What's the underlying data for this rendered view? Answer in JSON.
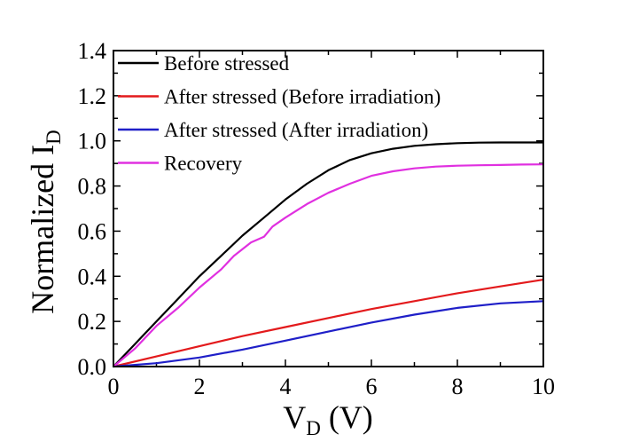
{
  "chart_data": {
    "type": "line",
    "xlabel": {
      "main": "V",
      "sub": "D",
      "rest": " (V)"
    },
    "ylabel": {
      "main": "Normalized I",
      "sub": "D"
    },
    "xlim": [
      0,
      10
    ],
    "ylim": [
      0,
      1.4
    ],
    "xticks": [
      "0",
      "2",
      "4",
      "6",
      "8",
      "10"
    ],
    "yticks": [
      "0.0",
      "0.2",
      "0.4",
      "0.6",
      "0.8",
      "1.0",
      "1.2",
      "1.4"
    ],
    "grid": false,
    "legend_position": "top-left",
    "series": [
      {
        "name": "Before stressed",
        "color": "#000000",
        "x": [
          0,
          0.5,
          1,
          1.5,
          2,
          2.5,
          3,
          3.5,
          4,
          4.5,
          5,
          5.5,
          6,
          6.5,
          7,
          7.5,
          8,
          8.5,
          9,
          9.5,
          10
        ],
        "y": [
          0,
          0.1,
          0.2,
          0.3,
          0.4,
          0.49,
          0.58,
          0.66,
          0.74,
          0.81,
          0.87,
          0.915,
          0.945,
          0.965,
          0.978,
          0.985,
          0.99,
          0.992,
          0.993,
          0.993,
          0.993
        ]
      },
      {
        "name": "After stressed (Before irradiation)",
        "color": "#e31a1c",
        "x": [
          0,
          1,
          2,
          3,
          4,
          5,
          6,
          7,
          8,
          9,
          10
        ],
        "y": [
          0,
          0.045,
          0.09,
          0.135,
          0.175,
          0.215,
          0.255,
          0.29,
          0.325,
          0.355,
          0.385
        ]
      },
      {
        "name": "After stressed (After irradiation)",
        "color": "#1f1fc8",
        "x": [
          0,
          1,
          2,
          3,
          4,
          5,
          6,
          7,
          8,
          9,
          10
        ],
        "y": [
          0,
          0.015,
          0.04,
          0.075,
          0.115,
          0.155,
          0.195,
          0.23,
          0.26,
          0.28,
          0.29
        ]
      },
      {
        "name": "Recovery",
        "color": "#e030e0",
        "x": [
          0,
          0.5,
          1,
          1.5,
          2,
          2.5,
          2.8,
          3.2,
          3.5,
          3.7,
          4,
          4.5,
          5,
          5.5,
          6,
          6.5,
          7,
          7.5,
          8,
          8.5,
          9,
          9.5,
          10
        ],
        "y": [
          0,
          0.08,
          0.18,
          0.26,
          0.35,
          0.43,
          0.49,
          0.55,
          0.575,
          0.62,
          0.66,
          0.72,
          0.77,
          0.81,
          0.845,
          0.865,
          0.878,
          0.886,
          0.89,
          0.892,
          0.893,
          0.895,
          0.896
        ]
      }
    ]
  }
}
